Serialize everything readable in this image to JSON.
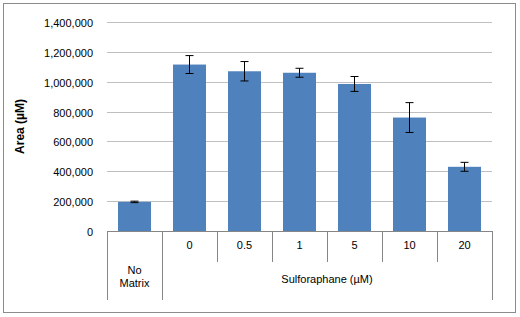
{
  "chart_data": {
    "type": "bar",
    "y_label": "Area (µM)",
    "categories": [
      null,
      "0",
      "0.5",
      "1",
      "5",
      "10",
      "20"
    ],
    "category_groups": [
      {
        "label": "No Matrix",
        "start": 0,
        "end": 0
      },
      {
        "label": "Sulforaphane (µM)",
        "start": 1,
        "end": 6
      }
    ],
    "values": [
      195000,
      1115000,
      1070000,
      1060000,
      985000,
      760000,
      430000
    ],
    "errors": [
      5000,
      60000,
      65000,
      30000,
      50000,
      100000,
      30000
    ],
    "color": "#4f81bd",
    "ylim": [
      0,
      1400000
    ],
    "yticks": [
      0,
      {
        "value": 200000,
        "label": "200,000"
      },
      {
        "value": 400000,
        "label": "400,000"
      },
      {
        "value": 600000,
        "label": "600,000"
      },
      {
        "value": 800000,
        "label": "800,000"
      },
      {
        "value": 1000000,
        "label": "1,000,000"
      },
      {
        "value": 1200000,
        "label": "1,200,000"
      },
      {
        "value": 1400000,
        "label": "1,400,000"
      }
    ],
    "grid": true
  }
}
